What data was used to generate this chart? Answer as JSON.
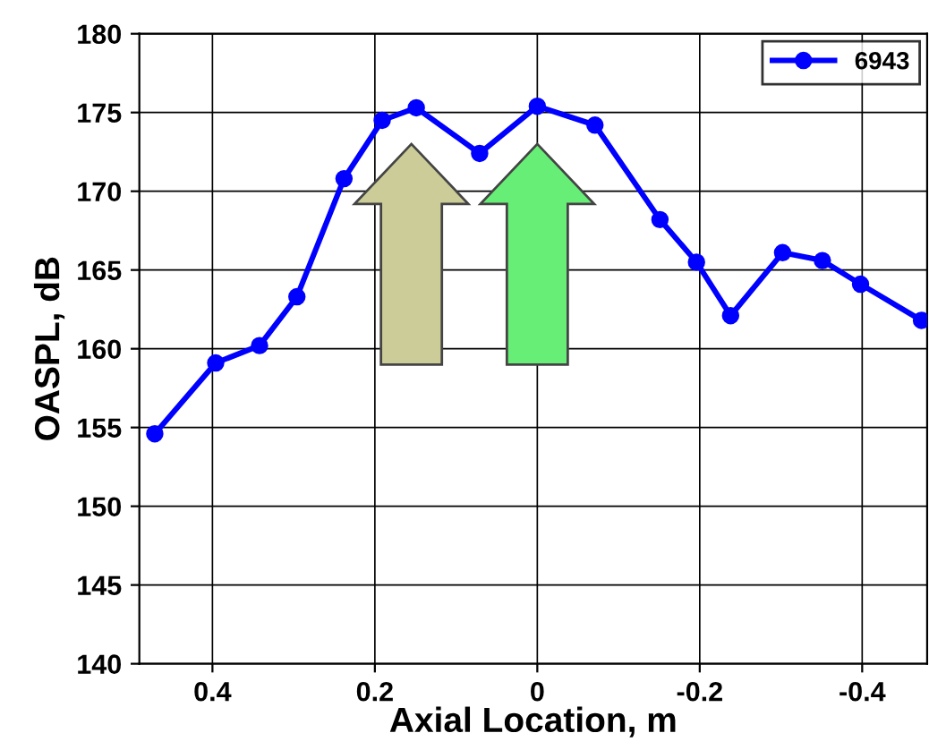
{
  "chart_data": {
    "type": "line",
    "xlabel": "Axial Location, m",
    "ylabel": "OASPL, dB",
    "x": [
      0.471,
      0.396,
      0.342,
      0.296,
      0.238,
      0.191,
      0.149,
      0.071,
      0.0,
      -0.071,
      -0.151,
      -0.196,
      -0.238,
      -0.302,
      -0.351,
      -0.398,
      -0.473
    ],
    "series": [
      {
        "name": "6943",
        "color": "#0000ff",
        "values": [
          154.6,
          159.1,
          160.2,
          163.3,
          170.8,
          174.5,
          175.3,
          172.4,
          175.4,
          174.2,
          168.2,
          165.5,
          162.1,
          166.1,
          165.6,
          164.1,
          161.8
        ]
      }
    ],
    "xlim": [
      0.49,
      -0.48
    ],
    "xticks": [
      0.4,
      0.2,
      0,
      -0.2,
      -0.4
    ],
    "ylim": [
      140,
      180
    ],
    "yticks": [
      140,
      145,
      150,
      155,
      160,
      165,
      170,
      175,
      180
    ],
    "grid": true,
    "legend": "top right",
    "marker": "circle",
    "line_style": "solid"
  }
}
